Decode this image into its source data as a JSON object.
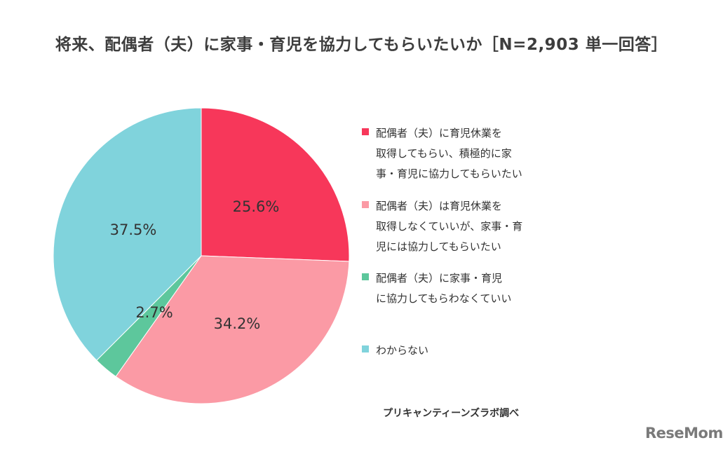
{
  "chart_data": {
    "type": "pie",
    "title": "将来、配偶者（夫）に家事・育児を協力してもらいたいか［N=2,903 単一回答］",
    "slices": [
      {
        "label": "配偶者（夫）に育児休業を\n取得してもらい、積極的に家\n事・育児に協力してもらいたい",
        "value": 25.6,
        "display": "25.6%",
        "color": "#f7375a"
      },
      {
        "label": "配偶者（夫）は育児休業を\n取得しなくていいが、家事・育\n児には協力してもらいたい",
        "value": 34.2,
        "display": "34.2%",
        "color": "#fb9aa5"
      },
      {
        "label": "配偶者（夫）に家事・育児\nに協力してもらわなくていい",
        "value": 2.7,
        "display": "2.7%",
        "color": "#5dc79c"
      },
      {
        "label": "わからない",
        "value": 37.5,
        "display": "37.5%",
        "color": "#80d3dc"
      }
    ],
    "legend_position": "right",
    "start_angle": "top-center, clockwise"
  },
  "source": "プリキャンティーンズラボ調べ",
  "logo_text": "ReseMom"
}
